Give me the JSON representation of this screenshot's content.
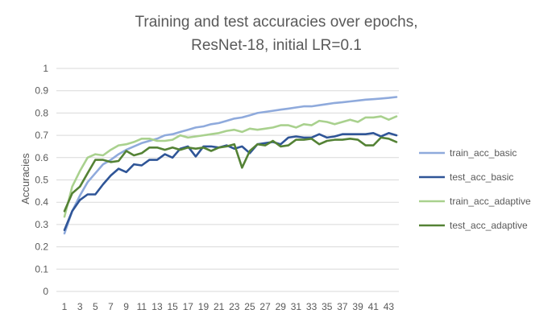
{
  "chart_data": {
    "type": "line",
    "title_lines": [
      "Training and test accuracies over epochs,",
      "ResNet-18, initial LR=0.1"
    ],
    "xlabel": "",
    "ylabel": "Accuracies",
    "ylim": [
      0,
      1
    ],
    "y_ticks": [
      "0",
      "0.1",
      "0.2",
      "0.3",
      "0.4",
      "0.5",
      "0.6",
      "0.7",
      "0.8",
      "0.9",
      "1"
    ],
    "x": [
      1,
      2,
      3,
      4,
      5,
      6,
      7,
      8,
      9,
      10,
      11,
      12,
      13,
      14,
      15,
      16,
      17,
      18,
      19,
      20,
      21,
      22,
      23,
      24,
      25,
      26,
      27,
      28,
      29,
      30,
      31,
      32,
      33,
      34,
      35,
      36,
      37,
      38,
      39,
      40,
      41,
      42,
      43,
      44
    ],
    "x_tick_labels": [
      "1",
      "3",
      "5",
      "7",
      "9",
      "11",
      "13",
      "15",
      "17",
      "19",
      "21",
      "23",
      "25",
      "27",
      "29",
      "31",
      "33",
      "35",
      "37",
      "39",
      "41",
      "43"
    ],
    "grid": true,
    "legend_position": "right",
    "series": [
      {
        "name": "train_acc_basic",
        "color": "#8faadc",
        "values": [
          0.26,
          0.36,
          0.43,
          0.49,
          0.53,
          0.57,
          0.59,
          0.615,
          0.635,
          0.65,
          0.665,
          0.675,
          0.685,
          0.7,
          0.705,
          0.715,
          0.725,
          0.735,
          0.74,
          0.75,
          0.755,
          0.765,
          0.775,
          0.78,
          0.79,
          0.8,
          0.805,
          0.81,
          0.815,
          0.82,
          0.825,
          0.83,
          0.83,
          0.835,
          0.84,
          0.845,
          0.848,
          0.852,
          0.856,
          0.86,
          0.862,
          0.865,
          0.868,
          0.872
        ]
      },
      {
        "name": "test_acc_basic",
        "color": "#2f5597",
        "values": [
          0.275,
          0.36,
          0.41,
          0.435,
          0.435,
          0.48,
          0.52,
          0.55,
          0.535,
          0.57,
          0.565,
          0.59,
          0.59,
          0.615,
          0.6,
          0.64,
          0.65,
          0.605,
          0.65,
          0.65,
          0.645,
          0.655,
          0.64,
          0.65,
          0.62,
          0.66,
          0.665,
          0.67,
          0.66,
          0.69,
          0.695,
          0.69,
          0.69,
          0.705,
          0.69,
          0.695,
          0.705,
          0.705,
          0.705,
          0.705,
          0.71,
          0.695,
          0.71,
          0.7
        ]
      },
      {
        "name": "train_acc_adaptive",
        "color": "#a9d18e",
        "values": [
          0.335,
          0.47,
          0.54,
          0.6,
          0.615,
          0.61,
          0.635,
          0.655,
          0.66,
          0.67,
          0.685,
          0.685,
          0.675,
          0.675,
          0.68,
          0.7,
          0.69,
          0.695,
          0.7,
          0.705,
          0.71,
          0.72,
          0.725,
          0.715,
          0.73,
          0.725,
          0.73,
          0.735,
          0.745,
          0.745,
          0.735,
          0.75,
          0.745,
          0.765,
          0.76,
          0.75,
          0.76,
          0.77,
          0.76,
          0.78,
          0.78,
          0.785,
          0.77,
          0.785
        ]
      },
      {
        "name": "test_acc_adaptive",
        "color": "#548235",
        "values": [
          0.36,
          0.44,
          0.47,
          0.53,
          0.59,
          0.59,
          0.58,
          0.585,
          0.63,
          0.61,
          0.62,
          0.645,
          0.645,
          0.635,
          0.645,
          0.635,
          0.645,
          0.64,
          0.645,
          0.63,
          0.645,
          0.65,
          0.66,
          0.555,
          0.63,
          0.66,
          0.655,
          0.675,
          0.65,
          0.655,
          0.68,
          0.68,
          0.685,
          0.66,
          0.675,
          0.68,
          0.68,
          0.685,
          0.68,
          0.655,
          0.655,
          0.69,
          0.685,
          0.67
        ]
      }
    ]
  }
}
